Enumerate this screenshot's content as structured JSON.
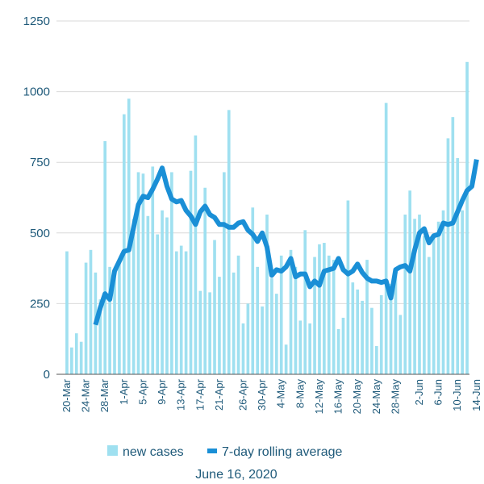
{
  "caption": "June 16, 2020",
  "chart_data": {
    "type": "bar+line",
    "title": "",
    "xlabel": "",
    "ylabel": "",
    "ylim": [
      0,
      1250
    ],
    "y_ticks": [
      0,
      250,
      500,
      750,
      1000,
      1250
    ],
    "grid": true,
    "legend_position": "bottom",
    "x_tick_labels": [
      "20-Mar",
      "24-Mar",
      "28-Mar",
      "1-Apr",
      "5-Apr",
      "9-Apr",
      "13-Apr",
      "17-Apr",
      "21-Apr",
      "26-Apr",
      "30-Apr",
      "4-May",
      "8-May",
      "12-May",
      "16-May",
      "20-May",
      "24-May",
      "28-May",
      "2-Jun",
      "6-Jun",
      "10-Jun",
      "14-Jun"
    ],
    "x_tick_day_index": [
      0,
      4,
      8,
      12,
      16,
      20,
      24,
      28,
      32,
      37,
      41,
      45,
      49,
      53,
      57,
      61,
      65,
      69,
      74,
      78,
      82,
      86
    ],
    "series": [
      {
        "name": "new cases",
        "type": "bar",
        "color": "#9fe0f0",
        "values": [
          435,
          95,
          145,
          115,
          395,
          440,
          360,
          265,
          825,
          380,
          345,
          395,
          920,
          975,
          550,
          715,
          710,
          560,
          735,
          495,
          580,
          555,
          715,
          435,
          455,
          435,
          720,
          845,
          295,
          660,
          290,
          475,
          345,
          715,
          935,
          360,
          420,
          180,
          250,
          590,
          380,
          240,
          565,
          340,
          285,
          420,
          105,
          440,
          380,
          190,
          510,
          180,
          415,
          460,
          465,
          420,
          405,
          160,
          200,
          615,
          325,
          300,
          260,
          405,
          235,
          100,
          280,
          960,
          320,
          350,
          210,
          565,
          650,
          550,
          565,
          490,
          415,
          485,
          540,
          580,
          835,
          910,
          765,
          580,
          1105
        ],
        "start_date": "20-Mar"
      },
      {
        "name": "7-day rolling average",
        "type": "line",
        "color": "#1a8fd6",
        "start_index": 6,
        "values": [
          175,
          235,
          285,
          265,
          365,
          400,
          435,
          440,
          520,
          600,
          630,
          625,
          655,
          690,
          730,
          665,
          620,
          610,
          615,
          580,
          560,
          530,
          575,
          595,
          565,
          555,
          530,
          530,
          520,
          520,
          535,
          540,
          510,
          495,
          470,
          500,
          450,
          350,
          370,
          365,
          380,
          410,
          345,
          355,
          355,
          310,
          330,
          315,
          365,
          370,
          375,
          410,
          370,
          355,
          365,
          390,
          360,
          340,
          330,
          330,
          325,
          330,
          270,
          370,
          380,
          385,
          365,
          440,
          500,
          515,
          465,
          490,
          495,
          535,
          530,
          535,
          575,
          615,
          650,
          665,
          760
        ]
      }
    ]
  }
}
